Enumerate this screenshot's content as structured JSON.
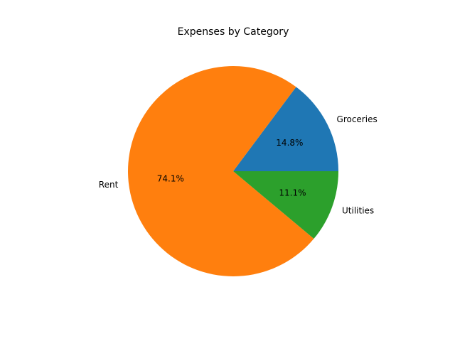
{
  "chart_data": {
    "type": "pie",
    "title": "Expenses by Category",
    "categories": [
      "Groceries",
      "Rent",
      "Utilities"
    ],
    "values": [
      14.8,
      74.1,
      11.1
    ],
    "value_labels": [
      "14.8%",
      "74.1%",
      "11.1%"
    ],
    "colors": [
      "#1f77b4",
      "#ff7f0e",
      "#2ca02c"
    ],
    "start_angle_deg": 0,
    "direction": "counterclockwise",
    "legend": "none"
  }
}
